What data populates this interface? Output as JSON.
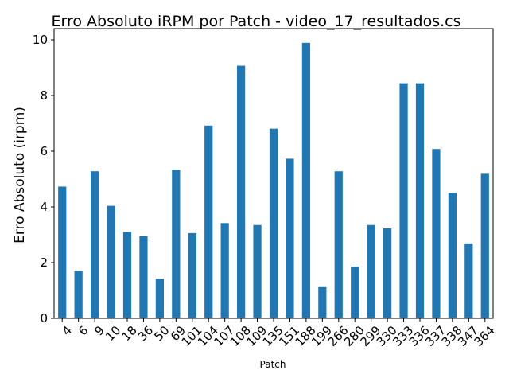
{
  "chart_data": {
    "type": "bar",
    "title": "Erro Absoluto iRPM por Patch - video_17_resultados.cs",
    "xlabel": "Patch",
    "ylabel": "Erro Absoluto (irpm)",
    "ylim": [
      0,
      10.4
    ],
    "yticks": [
      0,
      2,
      4,
      6,
      8,
      10
    ],
    "grid": false,
    "legend": "none",
    "bar_color": "#1f77b4",
    "categories": [
      "4",
      "6",
      "9",
      "10",
      "18",
      "36",
      "50",
      "69",
      "101",
      "104",
      "107",
      "108",
      "109",
      "135",
      "151",
      "188",
      "199",
      "266",
      "280",
      "299",
      "330",
      "333",
      "336",
      "337",
      "338",
      "347",
      "364"
    ],
    "values": [
      4.73,
      1.7,
      5.28,
      4.04,
      3.1,
      2.95,
      1.42,
      5.33,
      3.06,
      6.92,
      3.42,
      9.07,
      3.35,
      6.81,
      5.73,
      9.89,
      1.12,
      5.28,
      1.85,
      3.35,
      3.23,
      8.44,
      8.44,
      6.08,
      4.5,
      2.69,
      5.19
    ]
  }
}
